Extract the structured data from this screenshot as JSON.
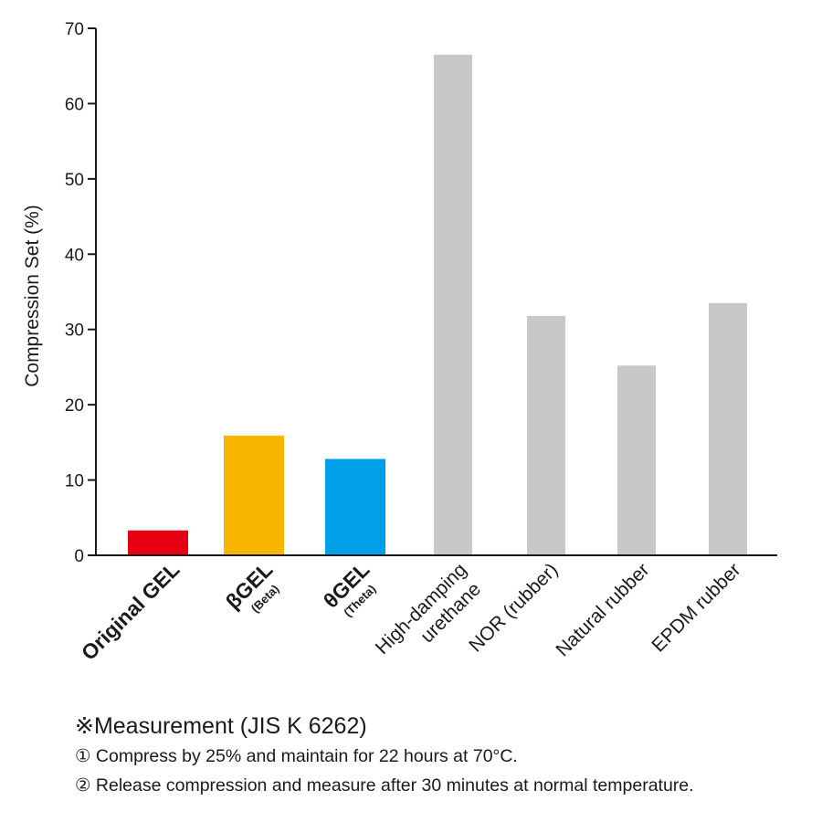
{
  "chart_data": {
    "type": "bar",
    "ylabel": "Compression Set (%)",
    "ylim": [
      0,
      70
    ],
    "yticks": [
      0,
      10,
      20,
      30,
      40,
      50,
      60,
      70
    ],
    "grid": false,
    "categories": [
      {
        "label": "Original GEL",
        "sub": "",
        "bold": true
      },
      {
        "label": "βGEL",
        "sub": "(Beta)",
        "bold": true
      },
      {
        "label": "θGEL",
        "sub": "(Theta)",
        "bold": true
      },
      {
        "label": "High-damping",
        "label2": "urethane",
        "sub": "",
        "bold": false
      },
      {
        "label": "NOR (rubber)",
        "sub": "",
        "bold": false
      },
      {
        "label": "Natural rubber",
        "sub": "",
        "bold": false
      },
      {
        "label": "EPDM rubber",
        "sub": "",
        "bold": false
      }
    ],
    "values": [
      3.3,
      15.9,
      12.8,
      66.5,
      31.8,
      25.2,
      33.5
    ],
    "colors": [
      "#e60012",
      "#f7b500",
      "#00a0e9",
      "#c8c8c8",
      "#c8c8c8",
      "#c8c8c8",
      "#c8c8c8"
    ]
  },
  "notes": {
    "title": "※Measurement (JIS K 6262)",
    "lines": [
      "① Compress by 25% and maintain for 22 hours at 70°C.",
      "② Release compression and measure after 30 minutes at normal temperature."
    ]
  }
}
